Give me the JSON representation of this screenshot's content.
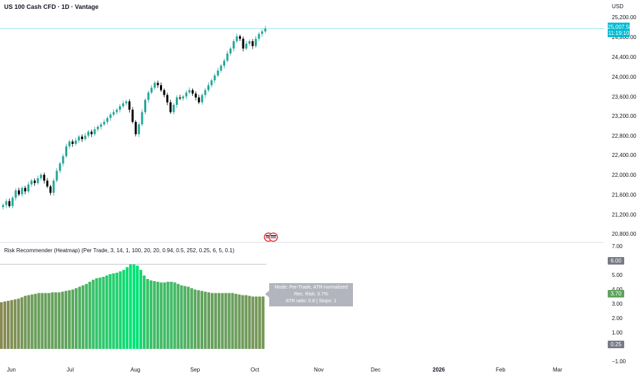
{
  "header": {
    "symbol_title": "US 100 Cash CFD · 1D · Vantage",
    "currency": "USD"
  },
  "price_axis": {
    "ticks": [
      "25,200.00",
      "24,400.00",
      "24,000.00",
      "23,600.00",
      "23,200.00",
      "22,800.00",
      "22,400.00",
      "22,000.00",
      "21,600.00",
      "21,200.00",
      "20,800.00"
    ],
    "hidden_tick": "24,800.00"
  },
  "price_tag": {
    "price": "25,007.58",
    "countdown": "11:19:10",
    "color": "#00bcd4"
  },
  "indicator": {
    "title": "Risk Recommender (Heatmap) (Per Trade, 3, 14, 1, 100, 20, 20, 0.94, 0.5, 252, 0.25, 6, 5, 0.1)",
    "axis_ticks": [
      "7.00",
      "5.00",
      "4.00",
      "3.00",
      "2.00",
      "1.00",
      "−1.00"
    ],
    "badges": {
      "max": {
        "label": "6.00",
        "color": "#787b86"
      },
      "current": {
        "label": "3.70",
        "color": "#5fa35f"
      },
      "min": {
        "label": "0.25",
        "color": "#787b86"
      }
    },
    "tooltip": {
      "line1": "Mode: Per-Trade, ATR-normalized",
      "line2": "Rec. Risk: 3.7%",
      "line3": "ATR ratio: 0.8 | Stops: 1"
    }
  },
  "date_axis": {
    "labels": [
      "Jun",
      "Jul",
      "Aug",
      "Sep",
      "Oct",
      "Nov",
      "Dec",
      "2026",
      "Feb",
      "Mar"
    ]
  },
  "colors": {
    "up": "#26a69a",
    "down": "#000000",
    "heat_low": "#8a8a55",
    "heat_high": "#00e676"
  },
  "chart_data": [
    {
      "type": "candlestick",
      "title": "US 100 Cash CFD · 1D · Vantage",
      "ylim": [
        20800,
        25200
      ],
      "closes": [
        21400,
        21480,
        21380,
        21550,
        21700,
        21620,
        21750,
        21680,
        21820,
        21900,
        21850,
        21950,
        22020,
        21900,
        21780,
        21650,
        21900,
        22100,
        22250,
        22400,
        22600,
        22700,
        22650,
        22720,
        22800,
        22750,
        22820,
        22900,
        22850,
        22950,
        23000,
        23050,
        23100,
        23180,
        23250,
        23300,
        23350,
        23420,
        23480,
        23520,
        23350,
        23100,
        22850,
        23050,
        23300,
        23550,
        23700,
        23800,
        23900,
        23850,
        23750,
        23650,
        23500,
        23300,
        23450,
        23600,
        23580,
        23620,
        23700,
        23750,
        23680,
        23600,
        23500,
        23650,
        23750,
        23850,
        23950,
        24050,
        24150,
        24250,
        24350,
        24500,
        24600,
        24750,
        24850,
        24800,
        24600,
        24700,
        24750,
        24650,
        24800,
        24900,
        24950,
        25007.58
      ]
    },
    {
      "type": "bar",
      "title": "Risk Recommender (Heatmap) (Per Trade, 3, 14, 1, 100, 20, 20, 0.94, 0.5, 252, 0.25, 6, 5, 0.1)",
      "ylim": [
        -1,
        7
      ],
      "values": [
        3.3,
        3.35,
        3.4,
        3.45,
        3.5,
        3.55,
        3.65,
        3.75,
        3.8,
        3.85,
        3.9,
        3.95,
        3.95,
        3.95,
        3.95,
        4.0,
        4.0,
        4.0,
        4.05,
        4.1,
        4.15,
        4.2,
        4.3,
        4.4,
        4.5,
        4.6,
        4.75,
        4.9,
        5.0,
        5.05,
        5.1,
        5.2,
        5.3,
        5.35,
        5.4,
        5.5,
        5.6,
        5.8,
        6.0,
        6.0,
        5.9,
        5.6,
        5.2,
        4.95,
        4.85,
        4.8,
        4.75,
        4.7,
        4.7,
        4.75,
        4.75,
        4.7,
        4.6,
        4.5,
        4.45,
        4.4,
        4.3,
        4.2,
        4.15,
        4.1,
        4.05,
        4.0,
        3.95,
        3.95,
        3.95,
        3.95,
        3.95,
        3.95,
        3.95,
        3.9,
        3.85,
        3.8,
        3.8,
        3.75,
        3.7,
        3.7,
        3.7,
        3.7
      ]
    }
  ]
}
